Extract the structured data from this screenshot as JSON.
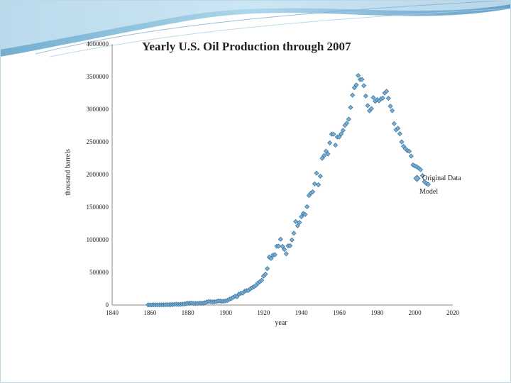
{
  "chart_data": {
    "type": "scatter",
    "title": "Yearly U.S. Oil Production through 2007",
    "xlabel": "year",
    "ylabel": "thousand barrels",
    "xlim": [
      1840,
      2020
    ],
    "ylim": [
      0,
      4000000
    ],
    "x_ticks": [
      "1840",
      "1860",
      "1880",
      "1900",
      "1920",
      "1940",
      "1960",
      "1980",
      "2000",
      "2020"
    ],
    "y_ticks": [
      "0",
      "500000",
      "1000000",
      "1500000",
      "2000000",
      "2500000",
      "3000000",
      "3500000",
      "4000000"
    ],
    "legend_position": "right",
    "grid": false,
    "series": [
      {
        "name": "Original Data",
        "color": "#3b7aa6",
        "marker": "diamond",
        "x": [
          1859,
          1860,
          1861,
          1862,
          1863,
          1864,
          1865,
          1866,
          1867,
          1868,
          1869,
          1870,
          1871,
          1872,
          1873,
          1874,
          1875,
          1876,
          1877,
          1878,
          1879,
          1880,
          1881,
          1882,
          1883,
          1884,
          1885,
          1886,
          1887,
          1888,
          1889,
          1890,
          1891,
          1892,
          1893,
          1894,
          1895,
          1896,
          1897,
          1898,
          1899,
          1900,
          1901,
          1902,
          1903,
          1904,
          1905,
          1906,
          1907,
          1908,
          1909,
          1910,
          1911,
          1912,
          1913,
          1914,
          1915,
          1916,
          1917,
          1918,
          1919,
          1920,
          1921,
          1922,
          1923,
          1924,
          1925,
          1926,
          1927,
          1928,
          1929,
          1930,
          1931,
          1932,
          1933,
          1934,
          1935,
          1936,
          1937,
          1938,
          1939,
          1940,
          1941,
          1942,
          1943,
          1944,
          1945,
          1946,
          1947,
          1948,
          1949,
          1950,
          1951,
          1952,
          1953,
          1954,
          1955,
          1956,
          1957,
          1958,
          1959,
          1960,
          1961,
          1962,
          1963,
          1964,
          1965,
          1966,
          1967,
          1968,
          1969,
          1970,
          1971,
          1972,
          1973,
          1974,
          1975,
          1976,
          1977,
          1978,
          1979,
          1980,
          1981,
          1982,
          1983,
          1984,
          1985,
          1986,
          1987,
          1988,
          1989,
          1990,
          1991,
          1992,
          1993,
          1994,
          1995,
          1996,
          1997,
          1998,
          1999,
          2000,
          2001,
          2002,
          2003,
          2004,
          2005,
          2006,
          2007
        ],
        "y": [
          2000,
          500,
          2100,
          3000,
          2600,
          2100,
          2500,
          3600,
          3300,
          3600,
          4200,
          5300,
          5200,
          6300,
          9900,
          10900,
          8800,
          9100,
          13300,
          15400,
          19900,
          26300,
          27700,
          30300,
          23400,
          24200,
          21900,
          28100,
          28300,
          27600,
          35200,
          45800,
          54300,
          50500,
          48400,
          49300,
          52900,
          60900,
          60500,
          55400,
          57100,
          63600,
          69400,
          88800,
          100500,
          117100,
          134700,
          126500,
          166100,
          178500,
          183200,
          209600,
          220400,
          222900,
          248400,
          265800,
          281100,
          300800,
          335300,
          355900,
          378400,
          442900,
          472200,
          557500,
          732400,
          713900,
          763700,
          770900,
          901100,
          901500,
          1007300,
          898000,
          851100,
          785200,
          905700,
          908100,
          996600,
          1099700,
          1279200,
          1214400,
          1265000,
          1353200,
          1402200,
          1386600,
          1505600,
          1677900,
          1713700,
          1733900,
          1857000,
          2020200,
          1841900,
          1973600,
          2247700,
          2289800,
          2357100,
          2314900,
          2484400,
          2617300,
          2616900,
          2449100,
          2574600,
          2574900,
          2621800,
          2676200,
          2752900,
          2786800,
          2848500,
          3027800,
          3215700,
          3329000,
          3371800,
          3517500,
          3453900,
          3455400,
          3360900,
          3202600,
          3056800,
          2976200,
          3009300,
          3178200,
          3121300,
          3146400,
          3128600,
          3156700,
          3170999,
          3249700,
          3274600,
          3168300,
          3047400,
          2979100,
          2778800,
          2684700,
          2707000,
          2624600,
          2499000,
          2431500,
          2394300,
          2366000,
          2354800,
          2281900,
          2146700,
          2130700,
          2117500,
          2097100,
          2073500,
          1983300,
          1890100,
          1862300,
          1848500
        ]
      }
    ]
  }
}
